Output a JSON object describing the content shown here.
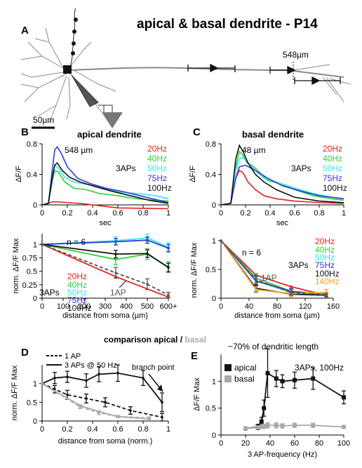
{
  "figure_title": "apical & basal dendrite - P14",
  "panels": {
    "A": {
      "letter": "A",
      "distance_label": "548µm",
      "scalebar_label": "50µm"
    },
    "B": {
      "letter": "B",
      "title": "apical dendrite"
    },
    "C": {
      "letter": "C",
      "title": "basal dendrite"
    },
    "D": {
      "letter": "D"
    },
    "E": {
      "letter": "E"
    }
  },
  "comparison_title": {
    "part1": "comparison apical / ",
    "part2": "basal"
  },
  "colors": {
    "20Hz": "#e8211d",
    "40Hz": "#30d23a",
    "50Hz": "#2ee8ee",
    "75Hz": "#2d3ad8",
    "100Hz": "#111111",
    "140Hz": "#f5a11e",
    "1AP": "#555555",
    "basal_grey": "#aaaaaa",
    "neuron": "#8a8a8a"
  },
  "chart_data": [
    {
      "id": "B_top",
      "type": "line",
      "annotation": "548 µm",
      "legend_group_label": "3APs",
      "xlabel": "sec",
      "ylabel": "ΔF/F",
      "xlim": [
        0,
        1
      ],
      "ylim": [
        0,
        0.8
      ],
      "xticks": [
        0,
        0.2,
        0.4,
        0.6,
        0.8,
        1
      ],
      "yticks": [
        0,
        0.4,
        0.8
      ],
      "legend": [
        "20Hz",
        "40Hz",
        "50Hz",
        "75Hz",
        "100Hz"
      ],
      "series": [
        {
          "name": "20Hz",
          "x": [
            0,
            0.05,
            0.08,
            0.12,
            0.2,
            0.3,
            0.4,
            0.5,
            0.6,
            1
          ],
          "y": [
            0,
            0.02,
            0.04,
            0.04,
            0.03,
            0.02,
            0,
            -0.02,
            -0.04,
            -0.05
          ]
        },
        {
          "name": "40Hz",
          "x": [
            0,
            0.05,
            0.08,
            0.1,
            0.13,
            0.18,
            0.25,
            0.35,
            0.45,
            0.6,
            0.75,
            0.9,
            1
          ],
          "y": [
            0,
            0.02,
            0.3,
            0.45,
            0.43,
            0.3,
            0.22,
            0.2,
            0.15,
            0.12,
            0.08,
            0.06,
            0.05
          ]
        },
        {
          "name": "50Hz",
          "x": [
            0,
            0.05,
            0.08,
            0.1,
            0.13,
            0.18,
            0.25,
            0.35,
            0.45,
            0.6,
            0.75,
            0.9,
            1
          ],
          "y": [
            0,
            0.02,
            0.35,
            0.52,
            0.48,
            0.36,
            0.3,
            0.27,
            0.24,
            0.17,
            0.15,
            0.12,
            0.08
          ]
        },
        {
          "name": "75Hz",
          "x": [
            0,
            0.05,
            0.08,
            0.1,
            0.12,
            0.15,
            0.2,
            0.28,
            0.38,
            0.5,
            0.65,
            0.8,
            0.95,
            1
          ],
          "y": [
            0,
            0.02,
            0.45,
            0.72,
            0.76,
            0.68,
            0.5,
            0.35,
            0.28,
            0.22,
            0.17,
            0.11,
            0.05,
            0.03
          ]
        },
        {
          "name": "100Hz",
          "x": [
            0,
            0.05,
            0.08,
            0.1,
            0.12,
            0.16,
            0.22,
            0.3,
            0.4,
            0.55,
            0.7,
            0.85,
            1
          ],
          "y": [
            0,
            0.02,
            0.35,
            0.52,
            0.55,
            0.45,
            0.36,
            0.3,
            0.25,
            0.18,
            0.12,
            0.06,
            0.02
          ]
        }
      ]
    },
    {
      "id": "C_top",
      "type": "line",
      "annotation": "48 µm",
      "legend_group_label": "3APs",
      "xlabel": "sec",
      "ylabel": "ΔF/F",
      "xlim": [
        0,
        1
      ],
      "ylim": [
        0,
        0.8
      ],
      "xticks": [
        0,
        0.2,
        0.4,
        0.6,
        0.8,
        1
      ],
      "yticks": [
        0,
        0.4,
        0.8
      ],
      "legend": [
        "20Hz",
        "40Hz",
        "50Hz",
        "75Hz",
        "100Hz"
      ],
      "series": [
        {
          "name": "20Hz",
          "x": [
            0,
            0.08,
            0.12,
            0.15,
            0.18,
            0.22,
            0.28,
            0.35,
            0.45,
            0.6,
            0.8,
            1
          ],
          "y": [
            0,
            0.02,
            0.35,
            0.45,
            0.42,
            0.3,
            0.2,
            0.12,
            0.08,
            0.05,
            0.03,
            0.02
          ]
        },
        {
          "name": "40Hz",
          "x": [
            0,
            0.08,
            0.12,
            0.15,
            0.18,
            0.21,
            0.25,
            0.3,
            0.38,
            0.48,
            0.6,
            0.75,
            0.9,
            1
          ],
          "y": [
            0,
            0.02,
            0.5,
            0.7,
            0.65,
            0.55,
            0.52,
            0.45,
            0.32,
            0.28,
            0.2,
            0.12,
            0.08,
            0.06
          ]
        },
        {
          "name": "50Hz",
          "x": [
            0,
            0.08,
            0.12,
            0.15,
            0.18,
            0.22,
            0.28,
            0.35,
            0.45,
            0.6,
            0.75,
            0.9,
            1
          ],
          "y": [
            0,
            0.02,
            0.45,
            0.6,
            0.62,
            0.55,
            0.45,
            0.35,
            0.3,
            0.22,
            0.15,
            0.1,
            0.08
          ]
        },
        {
          "name": "75Hz",
          "x": [
            0,
            0.08,
            0.12,
            0.15,
            0.2,
            0.28,
            0.38,
            0.5,
            0.65,
            0.8,
            1
          ],
          "y": [
            0,
            0.02,
            0.35,
            0.5,
            0.52,
            0.45,
            0.35,
            0.25,
            0.18,
            0.12,
            0.08
          ]
        },
        {
          "name": "100Hz",
          "x": [
            0,
            0.08,
            0.12,
            0.15,
            0.18,
            0.22,
            0.28,
            0.35,
            0.45,
            0.6,
            0.8,
            1
          ],
          "y": [
            0,
            0.02,
            0.6,
            0.78,
            0.7,
            0.55,
            0.4,
            0.3,
            0.2,
            0.1,
            0.05,
            0.03
          ]
        }
      ]
    },
    {
      "id": "B_bottom",
      "type": "line",
      "annotation": "n = 6",
      "legend_group_label": "3APs",
      "ap_label": "1AP",
      "xlabel": "distance  from soma (µm)",
      "ylabel": "norm. ΔF/F Max",
      "xlim": [
        0,
        600
      ],
      "ylim": [
        0,
        1.2
      ],
      "xticks": [
        0,
        100,
        200,
        300,
        400,
        500,
        600
      ],
      "xtick_labels": [
        "0",
        "100",
        "200",
        "300",
        "400",
        "500",
        "600+"
      ],
      "yticks": [
        0,
        0.25,
        0.5,
        0.75,
        1
      ],
      "ytick_labels": [
        "0",
        "0.25",
        "0.5",
        "0.75",
        "1"
      ],
      "legend": [
        "20Hz",
        "40Hz",
        "50Hz",
        "75Hz",
        "100Hz"
      ],
      "series": [
        {
          "name": "20Hz",
          "x": [
            0,
            350,
            600
          ],
          "y": [
            1,
            0.4,
            0.02
          ]
        },
        {
          "name": "40Hz",
          "x": [
            0,
            350,
            500,
            600
          ],
          "y": [
            1,
            0.72,
            0.82,
            0.58
          ],
          "err": [
            0,
            0.1,
            0.1,
            0.1
          ]
        },
        {
          "name": "50Hz",
          "x": [
            0,
            350,
            500,
            600
          ],
          "y": [
            1,
            1.07,
            1.12,
            0.95
          ],
          "err": [
            0,
            0.07,
            0.07,
            0.08
          ]
        },
        {
          "name": "75Hz",
          "x": [
            0,
            350,
            500,
            600
          ],
          "y": [
            1,
            1.05,
            1.08,
            0.93
          ],
          "err": [
            0,
            0.06,
            0.06,
            0.07
          ]
        },
        {
          "name": "100Hz",
          "x": [
            0,
            350,
            500,
            600
          ],
          "y": [
            1,
            0.82,
            0.83,
            0.57
          ],
          "err": [
            0,
            0.07,
            0.07,
            0.08
          ]
        },
        {
          "name": "1AP",
          "x": [
            0,
            350,
            500,
            600
          ],
          "y": [
            1,
            0.47,
            0.26,
            0.06
          ],
          "err": [
            0,
            0.1,
            0.1,
            0.05
          ]
        }
      ]
    },
    {
      "id": "C_bottom",
      "type": "line",
      "annotation": "n = 6",
      "legend_group_label": "3APs",
      "ap_label": "1AP",
      "xlabel": "distance  from soma (µm)",
      "ylabel": "norm. ΔF/F Max",
      "xlim": [
        0,
        160
      ],
      "ylim": [
        0,
        1
      ],
      "xticks": [
        0,
        40,
        80,
        120,
        160
      ],
      "yticks": [
        0,
        0.5,
        1
      ],
      "legend": [
        "20Hz",
        "40Hz",
        "50Hz",
        "75Hz",
        "100Hz",
        "140Hz"
      ],
      "series": [
        {
          "name": "20Hz",
          "x": [
            0,
            50,
            100,
            150
          ],
          "y": [
            1,
            0.4,
            0.2,
            0.05
          ]
        },
        {
          "name": "40Hz",
          "x": [
            0,
            50,
            100,
            150
          ],
          "y": [
            1,
            0.35,
            0.12,
            0.07
          ],
          "err": [
            0,
            0.08,
            0.05,
            0.03
          ]
        },
        {
          "name": "50Hz",
          "x": [
            0,
            50,
            100,
            150
          ],
          "y": [
            1,
            0.3,
            0.1,
            0.05
          ],
          "err": [
            0,
            0.08,
            0.05,
            0.03
          ]
        },
        {
          "name": "75Hz",
          "x": [
            0,
            50,
            100,
            150
          ],
          "y": [
            1,
            0.3,
            0.12,
            0.05
          ],
          "err": [
            0,
            0.08,
            0.05,
            0.03
          ]
        },
        {
          "name": "100Hz",
          "x": [
            0,
            50,
            100,
            150
          ],
          "y": [
            1,
            0.17,
            0.07,
            0.05
          ],
          "err": [
            0,
            0.06,
            0.04,
            0.03
          ]
        },
        {
          "name": "140Hz",
          "x": [
            0,
            50,
            100,
            150
          ],
          "y": [
            1,
            0.15,
            0.08,
            0.1
          ],
          "err": [
            0,
            0.05,
            0.05,
            0.05
          ]
        },
        {
          "name": "1AP",
          "x": [
            0,
            50,
            100,
            150
          ],
          "y": [
            1,
            0.32,
            0.1,
            0.05
          ],
          "err": [
            0,
            0.08,
            0.05,
            0.03
          ]
        }
      ]
    },
    {
      "id": "D",
      "type": "line",
      "annotation": "branch point",
      "xlabel": "distance  from soma (norm.)",
      "ylabel": "norm. ΔF/F Max",
      "xlim": [
        0,
        1
      ],
      "ylim": [
        0,
        1.5
      ],
      "xticks": [
        0,
        0.2,
        0.4,
        0.6,
        0.8,
        1
      ],
      "yticks": [
        0,
        0.5,
        1
      ],
      "legend": [
        "1 AP",
        "3 APs @ 50 Hz"
      ],
      "series": [
        {
          "name": "1 AP",
          "x": [
            0,
            0.1,
            0.2,
            0.35,
            0.5,
            0.7,
            0.95
          ],
          "y": [
            1,
            0.85,
            0.7,
            0.6,
            0.5,
            0.28,
            0.1
          ],
          "err": [
            0,
            0.1,
            0.12,
            0.12,
            0.12,
            0.1,
            0.1
          ]
        },
        {
          "name": "3 APs @ 50 Hz",
          "x": [
            0,
            0.1,
            0.2,
            0.35,
            0.45,
            0.6,
            0.8,
            0.95
          ],
          "y": [
            1,
            1.15,
            1.18,
            1.08,
            1.25,
            1.28,
            1.15,
            0.5
          ],
          "err": [
            0,
            0.15,
            0.15,
            0.18,
            0.2,
            0.22,
            0.2,
            0.25
          ]
        },
        {
          "name": "basal 1 AP",
          "x": [
            0,
            0.3,
            0.45,
            0.6,
            0.85
          ],
          "y": [
            1,
            0.38,
            0.22,
            0.12,
            0.08
          ],
          "err": [
            0,
            0.05,
            0.05,
            0.03,
            0.03
          ]
        },
        {
          "name": "basal 3 APs",
          "x": [
            0,
            0.1,
            0.3,
            0.45,
            0.6,
            0.85
          ],
          "y": [
            1,
            0.8,
            0.42,
            0.25,
            0.12,
            0.05
          ]
        }
      ]
    },
    {
      "id": "E",
      "type": "line",
      "annotation_top": "~70% of dendritic length",
      "annotation": "3APs, 100Hz",
      "xlabel": "3 AP-frequency (Hz)",
      "ylabel": "ΔF/F Max",
      "xlim": [
        0,
        100
      ],
      "ylim": [
        0,
        1.5
      ],
      "xticks": [
        0,
        20,
        40,
        60,
        80,
        100
      ],
      "yticks": [
        0,
        0.5,
        1
      ],
      "legend": [
        "apical",
        "basal"
      ],
      "series": [
        {
          "name": "apical",
          "x": [
            20,
            30,
            33,
            35,
            38,
            45,
            50,
            60,
            75,
            100
          ],
          "y": [
            0.12,
            0.15,
            0.25,
            0.5,
            1.15,
            1.05,
            1.0,
            1.02,
            1.05,
            0.7
          ],
          "err": [
            0.03,
            0.05,
            0.08,
            0.15,
            0.45,
            0.15,
            0.12,
            0.15,
            0.2,
            0.12
          ]
        },
        {
          "name": "basal",
          "x": [
            20,
            30,
            33,
            35,
            38,
            45,
            50,
            60,
            75,
            100
          ],
          "y": [
            0.12,
            0.14,
            0.15,
            0.16,
            0.18,
            0.18,
            0.17,
            0.18,
            0.18,
            0.15
          ],
          "err": [
            0.02,
            0.03,
            0.03,
            0.04,
            0.05,
            0.05,
            0.04,
            0.04,
            0.04,
            0.03
          ]
        }
      ]
    }
  ]
}
